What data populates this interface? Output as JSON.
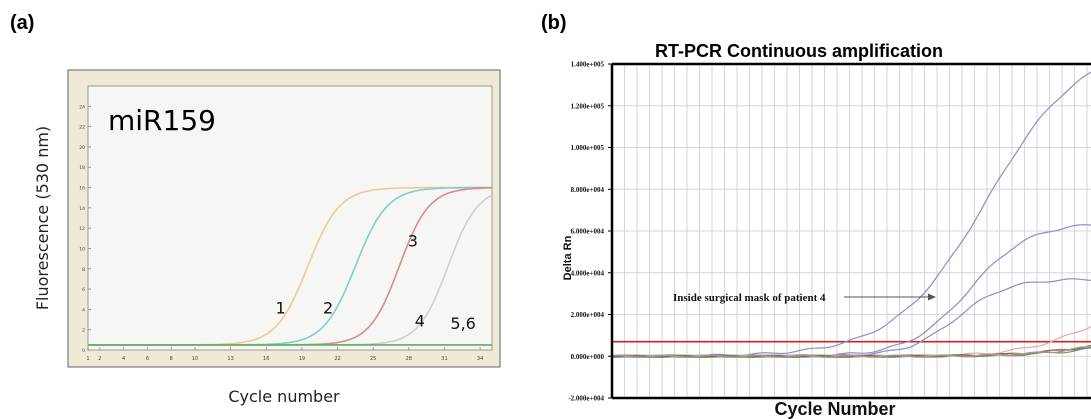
{
  "panel_labels": {
    "a": "(a)",
    "b": "(b)"
  },
  "chart_data": [
    {
      "type": "line",
      "panel": "(a)",
      "title": "",
      "inset_label": "miR159",
      "xlabel": "Cycle number",
      "ylabel": "Fluorescence (530 nm)",
      "xlim": [
        1,
        35
      ],
      "ylim": [
        0,
        26
      ],
      "x_ticks": [
        "1",
        "2",
        "4",
        "6",
        "8",
        "10",
        "13",
        "16",
        "19",
        "22",
        "25",
        "28",
        "31",
        "34"
      ],
      "y_ticks": [
        "0",
        "2",
        "4",
        "6",
        "8",
        "10",
        "12",
        "14",
        "16",
        "18",
        "20",
        "22",
        "24"
      ],
      "grid": false,
      "colors": {
        "plot_bg": "#f6f6f4",
        "frame_bg": "#efead6",
        "frame_border": "#666666"
      },
      "series": [
        {
          "label": "1",
          "color": "#f2c894",
          "midpoint": 19.5,
          "steepness": 0.75,
          "baseline": 0.5,
          "plateau": 16
        },
        {
          "label": "2",
          "color": "#7fcfcf",
          "midpoint": 23.5,
          "steepness": 0.75,
          "baseline": 0.5,
          "plateau": 16
        },
        {
          "label": "3",
          "color": "#d98b8b",
          "midpoint": 27.2,
          "steepness": 0.8,
          "baseline": 0.5,
          "plateau": 16
        },
        {
          "label": "4",
          "color": "#cfcfcf",
          "midpoint": 31.3,
          "steepness": 0.8,
          "baseline": 0.5,
          "plateau": 16
        },
        {
          "label": "5,6",
          "color": "#5fae5f",
          "flat": true,
          "baseline": 0.5
        }
      ]
    },
    {
      "type": "line",
      "panel": "(b)",
      "title": "RT-PCR  Continuous amplification",
      "xlabel": "Cycle Number",
      "ylabel": "Delta Rn",
      "xlim": [
        0,
        40
      ],
      "ylim": [
        -20000,
        140000
      ],
      "y_ticks": [
        "1.400e+005",
        "1.200e+005",
        "1.000e+005",
        "8.000e+004",
        "6.000e+004",
        "4.000e+004",
        "2.000e+004",
        "0.000e+000",
        "-2.000e+004"
      ],
      "y_tick_values": [
        140000,
        120000,
        100000,
        80000,
        60000,
        40000,
        20000,
        0,
        -20000
      ],
      "grid": true,
      "annotation": "Inside surgical mask of patient 4",
      "threshold": {
        "value": 7000,
        "color": "#cc2222"
      },
      "colors": {
        "curve": "#8a8fc2",
        "grid": "#d5d5dc"
      },
      "series": [
        {
          "color": "#8a8fc2",
          "midpoint": 30.0,
          "steepness": 0.27,
          "plateau": 150000
        },
        {
          "color": "#8a8fc2",
          "midpoint": 28.6,
          "steepness": 0.42,
          "plateau": 64000
        },
        {
          "color": "#8a8fc2",
          "midpoint": 27.6,
          "steepness": 0.5,
          "plateau": 37000
        },
        {
          "color": "#e4a8a8",
          "midpoint": 38.5,
          "steepness": 0.35,
          "plateau": 30000
        },
        {
          "color": "#999999",
          "midpoint": 37.5,
          "steepness": 0.35,
          "plateau": 8000
        },
        {
          "color": "#8c6a4a",
          "midpoint": 38.0,
          "steepness": 0.35,
          "plateau": 9000
        },
        {
          "color": "#5f9a5f",
          "midpoint": 39.0,
          "steepness": 0.35,
          "plateau": 8000
        },
        {
          "color": "#b59090",
          "midpoint": 38.8,
          "steepness": 0.35,
          "plateau": 10000
        }
      ]
    }
  ]
}
